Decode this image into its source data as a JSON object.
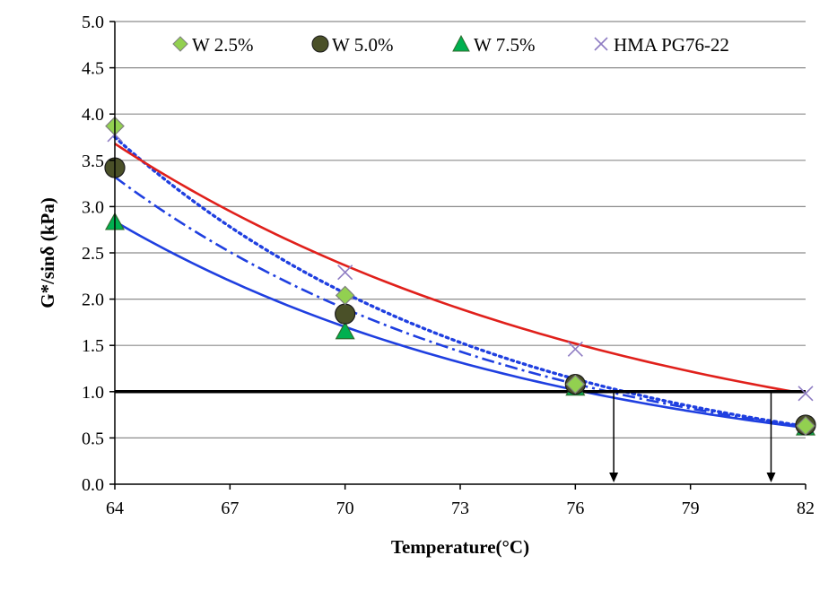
{
  "chart_data": {
    "type": "scatter",
    "title": "",
    "xlabel": "Temperature(°C)",
    "ylabel": "G*/sinδ (kPa)",
    "xlim": [
      64,
      82
    ],
    "ylim": [
      0.0,
      5.0
    ],
    "x_ticks": [
      64,
      67,
      70,
      73,
      76,
      79,
      82
    ],
    "x_tick_labels": [
      "64",
      "67",
      "70",
      "73",
      "76",
      "79",
      "82"
    ],
    "y_ticks": [
      0.0,
      0.5,
      1.0,
      1.5,
      2.0,
      2.5,
      3.0,
      3.5,
      4.0,
      4.5,
      5.0
    ],
    "y_tick_labels": [
      "0.0",
      "0.5",
      "1.0",
      "1.5",
      "2.0",
      "2.5",
      "3.0",
      "3.5",
      "4.0",
      "4.5",
      "5.0"
    ],
    "grid": "horizontal",
    "legend_position": "top",
    "series": [
      {
        "name": "W 2.5%",
        "marker": "diamond",
        "color": "#92D050",
        "x": [
          64,
          70,
          76,
          82
        ],
        "y": [
          3.87,
          2.04,
          1.08,
          0.63
        ],
        "trend": {
          "style": "dotted",
          "color": "#1F3FE0",
          "a": 3.75,
          "b": -0.0995,
          "x_from": 64,
          "x_to": 82
        }
      },
      {
        "name": "W 5.0%",
        "marker": "circle",
        "color": "#4A5028",
        "x": [
          64,
          70,
          76,
          82
        ],
        "y": [
          3.42,
          1.84,
          1.08,
          0.64
        ],
        "trend": {
          "style": "dash-dot",
          "color": "#1F3FE0",
          "a": 3.32,
          "b": -0.0933,
          "x_from": 64,
          "x_to": 82
        }
      },
      {
        "name": "W 7.5%",
        "marker": "triangle",
        "color": "#00B050",
        "x": [
          64,
          70,
          76,
          82
        ],
        "y": [
          2.83,
          1.65,
          1.04,
          0.61
        ],
        "trend": {
          "style": "solid",
          "color": "#1F3FE0",
          "a": 2.84,
          "b": -0.0855,
          "x_from": 64,
          "x_to": 82
        }
      },
      {
        "name": "HMA PG76-22",
        "marker": "x",
        "color": "#8E7CC3",
        "x": [
          64,
          70,
          76,
          82
        ],
        "y": [
          3.78,
          2.29,
          1.46,
          0.98
        ],
        "trend": {
          "style": "solid",
          "color": "#E0201B",
          "a": 3.68,
          "b": -0.0737,
          "x_from": 64,
          "x_to": 81.7
        }
      }
    ],
    "reference_line": {
      "y": 1.0,
      "color": "#000000"
    },
    "arrows": [
      {
        "x": 77.0,
        "y_from": 1.0,
        "y_to": 0.0
      },
      {
        "x": 81.1,
        "y_from": 1.0,
        "y_to": 0.0
      }
    ]
  }
}
